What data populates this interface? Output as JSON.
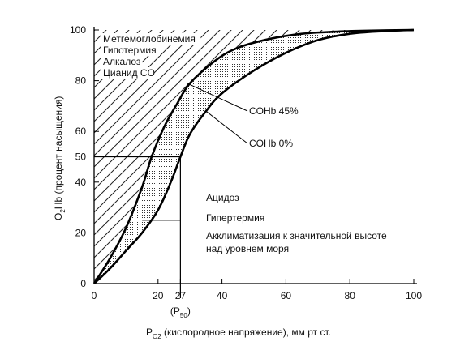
{
  "chart_data": {
    "type": "line",
    "xlim": [
      0,
      100
    ],
    "ylim": [
      0,
      100
    ],
    "x_ticks": [
      0,
      20,
      27,
      40,
      60,
      80,
      100
    ],
    "y_ticks": [
      0,
      20,
      40,
      50,
      60,
      80,
      100
    ],
    "x_tick_labels": [
      "0",
      "20",
      "27",
      "40",
      "60",
      "80",
      "100"
    ],
    "y_tick_labels": [
      "0",
      "20",
      "40",
      "50",
      "60",
      "80",
      "100"
    ],
    "p50_label": "(P50)",
    "xlabel": {
      "main": "P",
      "sub": "O2",
      "rest": " (кислородное напряжение), мм рт  ст."
    },
    "ylabel": {
      "main": "O",
      "sub": "2",
      "rest": "Hb (процент насыщения)"
    },
    "series": [
      {
        "name": "COHb 45%",
        "x": [
          0,
          5,
          10,
          15,
          18,
          22,
          26,
          30,
          38,
          45,
          55,
          65,
          75,
          85,
          100
        ],
        "y": [
          0,
          10,
          22,
          38,
          50,
          62,
          71,
          79,
          88,
          93,
          96.5,
          98.5,
          99.3,
          99.7,
          100
        ]
      },
      {
        "name": "COHb 0%",
        "x": [
          0,
          5,
          10,
          15,
          20,
          24,
          27,
          30,
          35,
          40,
          50,
          60,
          70,
          80,
          90,
          100
        ],
        "y": [
          0,
          6,
          13,
          20,
          29,
          40,
          50,
          59,
          68,
          75,
          84,
          91,
          96,
          98.5,
          99.5,
          100
        ]
      }
    ],
    "reference_lines": {
      "p50_x": 27,
      "p50_y": 50,
      "left_marker_y": 25
    },
    "annotations": {
      "left_shift": [
        "Метгемоглобинемия",
        "Гипотермия",
        "Алкалоз",
        "Цианид CO"
      ],
      "right_shift": [
        "Ацидоз",
        "Гипертермия",
        "Акклиматизация к значительной высоте",
        "над уровнем моря"
      ],
      "curve_labels": [
        "COHb 45%",
        "COHb 0%"
      ]
    }
  }
}
